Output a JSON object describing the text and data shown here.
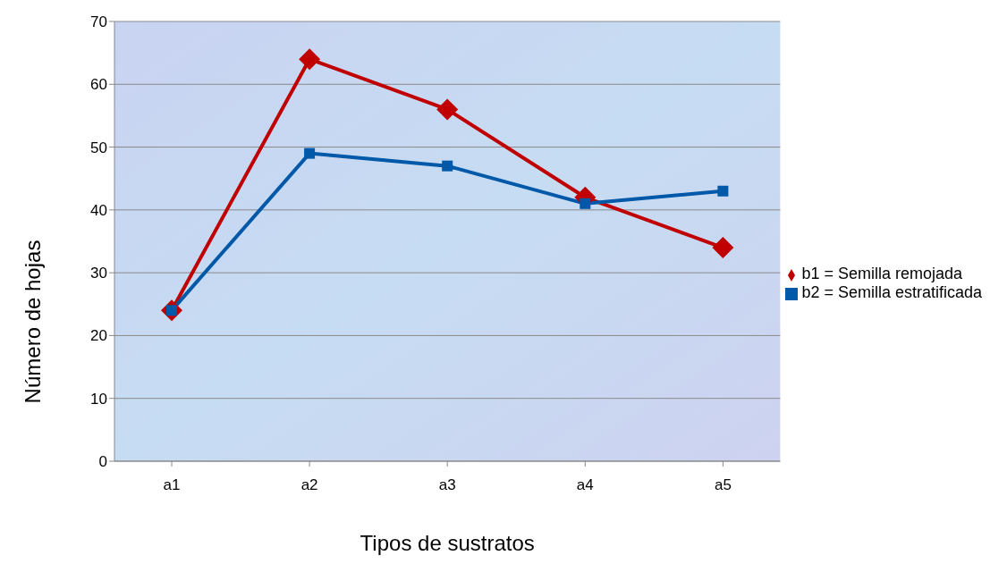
{
  "chart_data": {
    "type": "line",
    "xlabel": "Tipos de sustratos",
    "ylabel": "Número de hojas",
    "categories": [
      "a1",
      "a2",
      "a3",
      "a4",
      "a5"
    ],
    "series": [
      {
        "name": "b1 = Semilla remojada",
        "color": "#c00000",
        "marker": "diamond",
        "values": [
          24,
          64,
          56,
          42,
          34
        ]
      },
      {
        "name": "b2 = Semilla estratificada",
        "color": "#0058a8",
        "marker": "square",
        "values": [
          24,
          49,
          47,
          41,
          43
        ]
      }
    ],
    "ylim": [
      0,
      70
    ],
    "yticks": [
      0,
      10,
      20,
      30,
      40,
      50,
      60,
      70
    ],
    "grid": "y",
    "legend": "right",
    "line_style": "solid"
  }
}
